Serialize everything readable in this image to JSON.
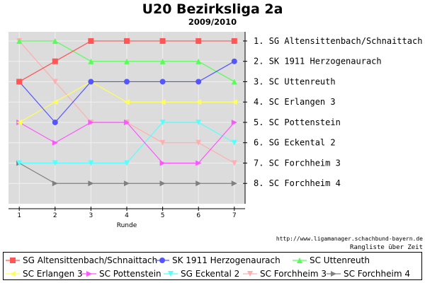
{
  "header": {
    "title": "U20 Bezirksliga 2a",
    "subtitle": "2009/2010"
  },
  "credit": {
    "url": "http://www.ligamanager.schachbund-bayern.de",
    "caption": "Rangliste über Zeit"
  },
  "colors": {
    "plot_background": "#dcdcdc",
    "gridline": "#f0f0f0"
  },
  "chart_data": {
    "type": "line",
    "x": [
      1,
      2,
      3,
      4,
      5,
      6,
      7
    ],
    "xlabel": "Runde",
    "ylabel": "",
    "ylim": [
      1,
      8
    ],
    "y_inverted": true,
    "grid": true,
    "right_labels": [
      "1.  SG Altensittenbach/Schnaittach",
      "2.  SK 1911 Herzogenaurach",
      "3.  SC Uttenreuth",
      "4.  SC Erlangen 3",
      "5.  SC Pottenstein",
      "6.  SG Eckental 2",
      "7.  SC Forchheim 3",
      "8.  SC Forchheim 4"
    ],
    "series": [
      {
        "name": "SG Altensittenbach/Schnaittach",
        "color": "#ff5555",
        "marker": "square",
        "values": [
          3,
          2,
          1,
          1,
          1,
          1,
          1
        ]
      },
      {
        "name": "SK 1911 Herzogenaurach",
        "color": "#5555ff",
        "marker": "circle",
        "values": [
          3,
          5,
          3,
          3,
          3,
          3,
          2
        ]
      },
      {
        "name": "SC Uttenreuth",
        "color": "#55ff55",
        "marker": "triangle-up",
        "values": [
          1,
          1,
          2,
          2,
          2,
          2,
          3
        ]
      },
      {
        "name": "SC Erlangen 3",
        "color": "#ffff55",
        "marker": "triangle-left",
        "values": [
          5,
          4,
          3,
          4,
          4,
          4,
          4
        ]
      },
      {
        "name": "SC Pottenstein",
        "color": "#ff55ff",
        "marker": "triangle-right",
        "values": [
          5,
          6,
          5,
          5,
          7,
          7,
          5
        ]
      },
      {
        "name": "SG Eckental 2",
        "color": "#55ffff",
        "marker": "triangle-down",
        "values": [
          7,
          7,
          7,
          7,
          5,
          5,
          6
        ]
      },
      {
        "name": "SC Forchheim 3",
        "color": "#ffafaf",
        "marker": "triangle-down",
        "values": [
          1,
          3,
          5,
          5,
          6,
          6,
          7
        ]
      },
      {
        "name": "SC Forchheim 4",
        "color": "#808080",
        "marker": "triangle-right",
        "values": [
          7,
          8,
          8,
          8,
          8,
          8,
          8
        ]
      }
    ]
  }
}
